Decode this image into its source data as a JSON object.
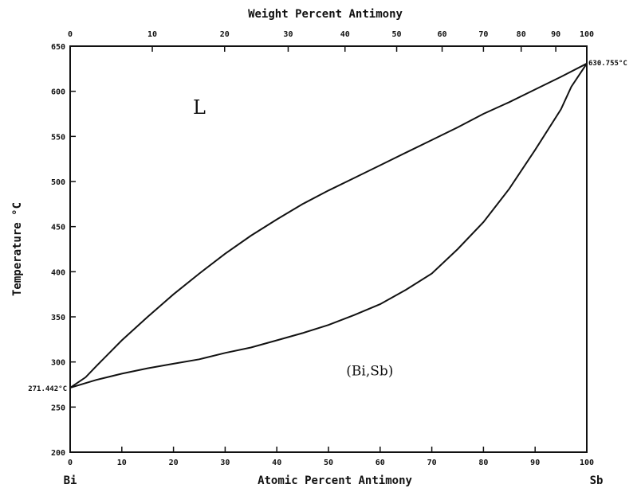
{
  "chart_data": {
    "type": "line",
    "title": "Weight Percent Antimony",
    "xlabel": "Atomic Percent Antimony",
    "ylabel": "Temperature °C",
    "xlim": [
      0,
      100
    ],
    "ylim": [
      200,
      650
    ],
    "x_ticks": [
      0,
      10,
      20,
      30,
      40,
      50,
      60,
      70,
      80,
      90,
      100
    ],
    "y_ticks": [
      200,
      250,
      300,
      350,
      400,
      450,
      500,
      550,
      600,
      650
    ],
    "top_ticks": [
      "0",
      "10",
      "20",
      "30",
      "40",
      "50",
      "60",
      "70",
      "80",
      "90",
      "100"
    ],
    "top_tick_atomic": [
      0,
      15.9,
      29.9,
      42.2,
      53.2,
      63.2,
      72.0,
      80.0,
      87.3,
      94.0,
      100
    ],
    "end_labels": {
      "left": "Bi",
      "right": "Sb"
    },
    "region_labels": [
      {
        "text": "L",
        "x": 25,
        "y": 575
      },
      {
        "text": "(Bi,Sb)",
        "x": 58,
        "y": 285
      }
    ],
    "annotations": [
      {
        "text": "271.442°C",
        "x": 0,
        "y": 271.4
      },
      {
        "text": "630.755°C",
        "x": 100,
        "y": 630.8
      }
    ],
    "series": [
      {
        "values": [
          [
            0,
            271.4
          ],
          [
            3,
            283
          ],
          [
            5,
            295
          ],
          [
            10,
            324
          ],
          [
            15,
            350
          ],
          [
            20,
            375
          ],
          [
            25,
            398
          ],
          [
            30,
            420
          ],
          [
            35,
            440
          ],
          [
            40,
            458
          ],
          [
            45,
            475
          ],
          [
            50,
            490
          ],
          [
            55,
            504
          ],
          [
            60,
            518
          ],
          [
            65,
            532
          ],
          [
            70,
            546
          ],
          [
            75,
            560
          ],
          [
            80,
            575
          ],
          [
            85,
            588
          ],
          [
            90,
            602
          ],
          [
            95,
            616
          ],
          [
            100,
            630.8
          ]
        ]
      },
      {
        "values": [
          [
            0,
            271.4
          ],
          [
            5,
            280
          ],
          [
            10,
            287
          ],
          [
            15,
            293
          ],
          [
            20,
            298
          ],
          [
            25,
            303
          ],
          [
            30,
            310
          ],
          [
            35,
            316
          ],
          [
            40,
            324
          ],
          [
            45,
            332
          ],
          [
            50,
            341
          ],
          [
            55,
            352
          ],
          [
            60,
            364
          ],
          [
            65,
            380
          ],
          [
            70,
            398
          ],
          [
            75,
            425
          ],
          [
            80,
            455
          ],
          [
            85,
            492
          ],
          [
            90,
            535
          ],
          [
            95,
            580
          ],
          [
            97,
            605
          ],
          [
            100,
            630.8
          ]
        ]
      }
    ]
  }
}
